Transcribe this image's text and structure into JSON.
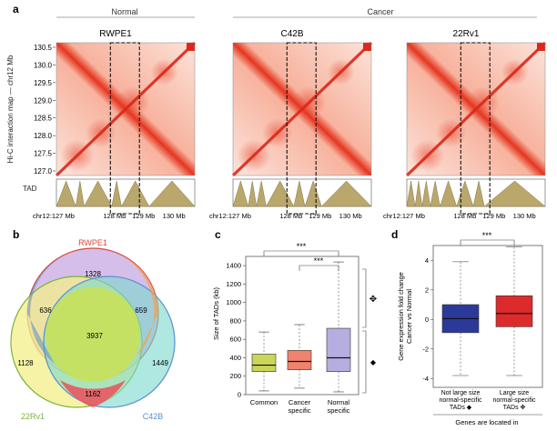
{
  "panel_a": {
    "letter": "a",
    "group_normal": "Normal",
    "group_cancer": "Cancer",
    "y_axis_label": "Hi-C interaction map — chr12 Mb",
    "y_ticks": [
      "130.5",
      "130.0",
      "129.5",
      "129.0",
      "128.5",
      "128.0",
      "127.5",
      "127.0"
    ],
    "tad_label": "TAD",
    "x_ticks": [
      "chr12:127 Mb",
      "128 Mb",
      "129 Mb",
      "130 Mb"
    ],
    "maps": [
      {
        "name": "RWPE1"
      },
      {
        "name": "C42B"
      },
      {
        "name": "22Rv1"
      }
    ]
  },
  "panel_b": {
    "letter": "b",
    "set_labels": {
      "rwpe1": "RWPE1",
      "c42b": "C42B",
      "rv1": "22Rv1"
    },
    "colors": {
      "rwpe1": "#d9493c",
      "c42b": "#5a8fd0",
      "rv1": "#7bb33a"
    },
    "regions": {
      "rwpe1_only": "1328",
      "rwpe1_rv1": "636",
      "rwpe1_c42b": "659",
      "all_three": "3937",
      "rv1_only": "1128",
      "c42b_only": "1449",
      "rv1_c42b": "1162"
    }
  },
  "panel_c": {
    "letter": "c",
    "sig1": "***",
    "sig2": "***",
    "marker_large": "✥",
    "marker_small": "◆"
  },
  "panel_d": {
    "letter": "d",
    "sig": "***",
    "footer": "Genes are located in",
    "cat1_lines": [
      "Not large size",
      "normal-specific",
      "TADs ◆"
    ],
    "cat2_lines": [
      "Large size",
      "normal-specific",
      "TADs ✥"
    ]
  },
  "chart_data": [
    {
      "type": "box",
      "panel": "c",
      "ylabel": "Size of TADs (kb)",
      "ylim": [
        0,
        1500
      ],
      "yticks": [
        0,
        200,
        400,
        600,
        800,
        1000,
        1200,
        1400
      ],
      "categories": [
        "Common",
        "Cancer specific",
        "Normal specific"
      ],
      "colors": [
        "#c9d65a",
        "#f0826e",
        "#b6aee0"
      ],
      "boxes": [
        {
          "whisker_low": 40,
          "q1": 250,
          "median": 320,
          "q3": 440,
          "whisker_high": 680
        },
        {
          "whisker_low": 70,
          "q1": 270,
          "median": 360,
          "q3": 480,
          "whisker_high": 760
        },
        {
          "whisker_low": 30,
          "q1": 250,
          "median": 400,
          "q3": 720,
          "whisker_high": 1440
        }
      ]
    },
    {
      "type": "box",
      "panel": "d",
      "ylabel": "Gene expression fold change Cancer vs Normal",
      "ylim": [
        -4.6,
        5
      ],
      "yticks": [
        -4,
        -2,
        0,
        2,
        4
      ],
      "categories": [
        "Not large size normal-specific TADs ◆",
        "Large size normal-specific TADs ✥"
      ],
      "colors": [
        "#2b3a99",
        "#dd2b2b"
      ],
      "boxes": [
        {
          "whisker_low": -3.8,
          "q1": -0.9,
          "median": 0.05,
          "q3": 1.0,
          "whisker_high": 3.9
        },
        {
          "whisker_low": -3.8,
          "q1": -0.5,
          "median": 0.4,
          "q3": 1.6,
          "whisker_high": 4.9
        }
      ]
    }
  ]
}
